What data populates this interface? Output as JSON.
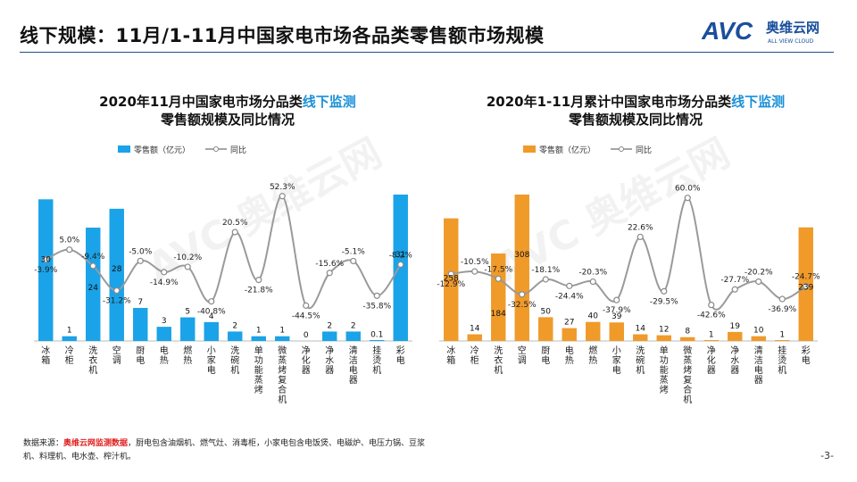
{
  "page": {
    "title": "线下规模：11月/1-11月中国家电市场各品类零售额市场规模",
    "page_number": "-3-",
    "brand_text": "奥维云网",
    "brand_sub": "ALL VIEW CLOUD",
    "brand_logo": "AVC"
  },
  "source": {
    "prefix": "数据来源：",
    "highlight": "奥维云网监测数据",
    "body": "，厨电包含油烟机、燃气灶、消毒柜，小家电包含电饭煲、电磁炉、电压力锅、豆浆机、料理机、电水壶、榨汁机。"
  },
  "chart_data": [
    {
      "type": "bar",
      "title_parts": [
        "2020年11月中国家电市场分品类",
        "线下监测",
        "零售额规模及同比情况"
      ],
      "title": "2020年11月中国家电市场分品类线下监测零售额规模及同比情况",
      "legend": [
        "零售额（亿元）",
        "同比"
      ],
      "bar_color": "#1aa3e8",
      "categories": [
        "冰箱",
        "冷柜",
        "洗衣机",
        "空调",
        "厨电",
        "电热",
        "燃热",
        "小家电",
        "洗碗机",
        "单功能蒸烤",
        "微蒸烤复合机",
        "净化器",
        "净水器",
        "清洁电器",
        "挂烫机",
        "彩电"
      ],
      "values": [
        30,
        1,
        24,
        28,
        7,
        3,
        5,
        4,
        2,
        1,
        1,
        0,
        2,
        2,
        0.1,
        31
      ],
      "value_labels": [
        "30",
        "1",
        "24",
        "28",
        "7",
        "3",
        "5",
        "4",
        "2",
        "1",
        "1",
        "0",
        "2",
        "2",
        "0.1",
        "31"
      ],
      "yoy": [
        -3.9,
        5.0,
        -9.4,
        -31.2,
        -5.0,
        -14.9,
        -10.2,
        -40.8,
        20.5,
        -21.8,
        52.3,
        -44.5,
        -15.6,
        -5.1,
        -35.8,
        -8.2
      ],
      "yoy_labels": [
        "-3.9%",
        "5.0%",
        "-9.4%",
        "-31.2%",
        "-5.0%",
        "-14.9%",
        "-10.2%",
        "-40.8%",
        "20.5%",
        "-21.8%",
        "52.3%",
        "-44.5%",
        "-15.6%",
        "-5.1%",
        "-35.8%",
        "-8.2%"
      ],
      "bar_max": 31,
      "yoy_range": [
        -60,
        60
      ]
    },
    {
      "type": "bar",
      "title_parts": [
        "2020年1-11月累计中国家电市场分品类",
        "线下监测",
        "零售额规模及同比情况"
      ],
      "title": "2020年1-11月累计中国家电市场分品类线下监测零售额规模及同比情况",
      "legend": [
        "零售额（亿元）",
        "同比"
      ],
      "bar_color": "#f09a2a",
      "categories": [
        "冰箱",
        "冷柜",
        "洗衣机",
        "空调",
        "厨电",
        "电热",
        "燃热",
        "小家电",
        "洗碗机",
        "单功能蒸烤",
        "微蒸烤复合机",
        "净化器",
        "净水器",
        "清洁电器",
        "挂烫机",
        "彩电"
      ],
      "values": [
        258,
        14,
        184,
        308,
        50,
        27,
        40,
        39,
        14,
        12,
        8,
        1,
        19,
        10,
        1,
        239
      ],
      "value_labels": [
        "258",
        "14",
        "184",
        "308",
        "50",
        "27",
        "40",
        "39",
        "14",
        "12",
        "8",
        "1",
        "19",
        "10",
        "1",
        "239"
      ],
      "yoy": [
        -12.9,
        -10.5,
        -17.5,
        -32.5,
        -18.1,
        -24.4,
        -20.3,
        -37.9,
        22.6,
        -29.5,
        60.0,
        -42.6,
        -27.7,
        -20.2,
        -36.9,
        -24.7
      ],
      "yoy_labels": [
        "-12.9%",
        "-10.5%",
        "-17.5%",
        "-32.5%",
        "-18.1%",
        "-24.4%",
        "-20.3%",
        "-37.9%",
        "22.6%",
        "-29.5%",
        "60.0%",
        "-42.6%",
        "-27.7%",
        "-20.2%",
        "-36.9%",
        "-24.7%"
      ],
      "bar_max": 308,
      "yoy_range": [
        -60,
        70
      ]
    }
  ]
}
